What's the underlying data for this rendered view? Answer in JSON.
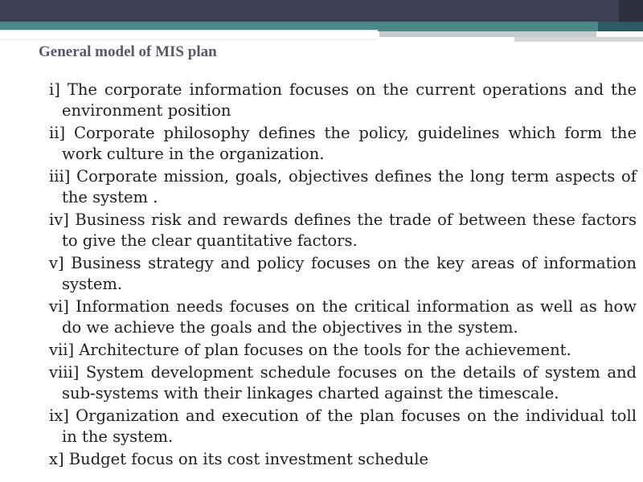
{
  "slide": {
    "title": "General model of MIS plan",
    "items": [
      "i] The corporate information focuses on the current operations and the environment position",
      "ii] Corporate philosophy defines the policy, guidelines which form the work culture in the organization.",
      "iii] Corporate mission, goals, objectives defines the long term aspects of the system .",
      "iv] Business risk and rewards defines the trade of between these factors to give the clear quantitative factors.",
      "v] Business strategy and policy focuses on the key areas of information system.",
      "vi] Information needs focuses on the critical information as well as how do we achieve the goals and the objectives in the system.",
      "vii] Architecture of plan focuses on the tools for the achievement.",
      "viii] System development schedule focuses on the details of system and sub-systems with their linkages charted against the timescale.",
      "ix] Organization and execution of the plan focuses on the individual toll in the system.",
      "x] Budget focus on its cost investment schedule"
    ]
  },
  "colors": {
    "top_bar": "#3d3f52",
    "teal_band": "#4c8a8a",
    "title_text": "#55596a",
    "body_text": "#1e1e1e"
  }
}
